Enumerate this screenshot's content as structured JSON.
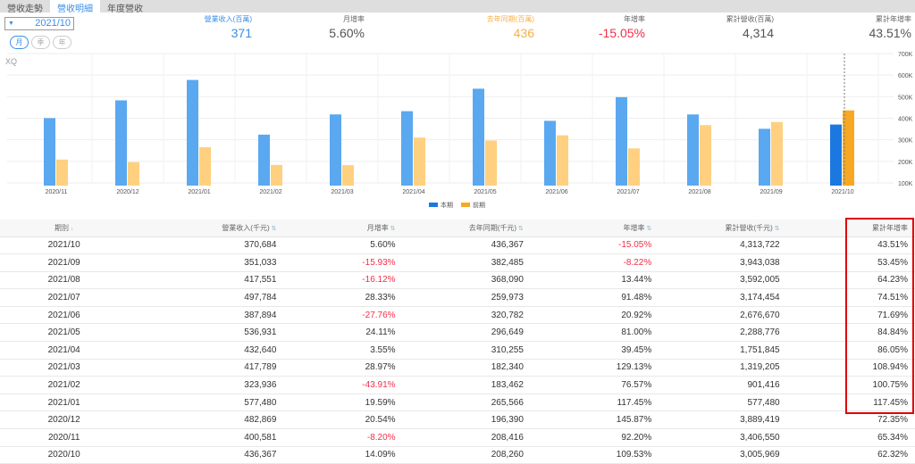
{
  "tabs": [
    "營收走勢",
    "營收明細",
    "年度營收"
  ],
  "date_select": "2021/10",
  "periods": [
    "月",
    "季",
    "年"
  ],
  "stats": [
    {
      "label": "營業收入(百萬)",
      "value": "371",
      "color": "#3a8ee6",
      "labelColor": "#3a8ee6"
    },
    {
      "label": "月增率",
      "value": "5.60%",
      "color": "#555",
      "labelColor": "#666"
    },
    {
      "label": "去年同期(百萬)",
      "value": "436",
      "color": "#f7b04a",
      "labelColor": "#f7b04a"
    },
    {
      "label": "年增率",
      "value": "-15.05%",
      "color": "#f0304a",
      "labelColor": "#666"
    },
    {
      "label": "累計營收(百萬)",
      "value": "4,314",
      "color": "#555",
      "labelColor": "#666"
    },
    {
      "label": "累計年增率",
      "value": "43.51%",
      "color": "#555",
      "labelColor": "#666"
    }
  ],
  "chart_data": {
    "type": "bar",
    "watermark": "XQ",
    "categories": [
      "2020/11",
      "2020/12",
      "2021/01",
      "2021/02",
      "2021/03",
      "2021/04",
      "2021/05",
      "2021/06",
      "2021/07",
      "2021/08",
      "2021/09",
      "2021/10"
    ],
    "series": [
      {
        "name": "本期",
        "color": "#5aa8f0",
        "highlight": "#1a78e0",
        "values": [
          400581,
          482869,
          577480,
          323936,
          417789,
          432640,
          536931,
          387894,
          497784,
          417551,
          351033,
          370684
        ]
      },
      {
        "name": "前期",
        "color": "#ffd080",
        "highlight": "#f7a820",
        "values": [
          208416,
          196390,
          265566,
          183462,
          182340,
          310255,
          296649,
          320782,
          259973,
          368090,
          382485,
          436367
        ]
      }
    ],
    "yticks": [
      "100K",
      "200K",
      "300K",
      "400K",
      "500K",
      "600K",
      "700K"
    ],
    "ylim": [
      100000,
      700000
    ],
    "legend": "bottom-center"
  },
  "table": {
    "headers": [
      "期別",
      "營業收入(千元)",
      "月增率",
      "去年同期(千元)",
      "年增率",
      "累計營收(千元)",
      "累計年增率"
    ],
    "rows": [
      [
        "2021/10",
        "370,684",
        "5.60%",
        "436,367",
        "-15.05%",
        "4,313,722",
        "43.51%"
      ],
      [
        "2021/09",
        "351,033",
        "-15.93%",
        "382,485",
        "-8.22%",
        "3,943,038",
        "53.45%"
      ],
      [
        "2021/08",
        "417,551",
        "-16.12%",
        "368,090",
        "13.44%",
        "3,592,005",
        "64.23%"
      ],
      [
        "2021/07",
        "497,784",
        "28.33%",
        "259,973",
        "91.48%",
        "3,174,454",
        "74.51%"
      ],
      [
        "2021/06",
        "387,894",
        "-27.76%",
        "320,782",
        "20.92%",
        "2,676,670",
        "71.69%"
      ],
      [
        "2021/05",
        "536,931",
        "24.11%",
        "296,649",
        "81.00%",
        "2,288,776",
        "84.84%"
      ],
      [
        "2021/04",
        "432,640",
        "3.55%",
        "310,255",
        "39.45%",
        "1,751,845",
        "86.05%"
      ],
      [
        "2021/03",
        "417,789",
        "28.97%",
        "182,340",
        "129.13%",
        "1,319,205",
        "108.94%"
      ],
      [
        "2021/02",
        "323,936",
        "-43.91%",
        "183,462",
        "76.57%",
        "901,416",
        "100.75%"
      ],
      [
        "2021/01",
        "577,480",
        "19.59%",
        "265,566",
        "117.45%",
        "577,480",
        "117.45%"
      ],
      [
        "2020/12",
        "482,869",
        "20.54%",
        "196,390",
        "145.87%",
        "3,889,419",
        "72.35%"
      ],
      [
        "2020/11",
        "400,581",
        "-8.20%",
        "208,416",
        "92.20%",
        "3,406,550",
        "65.34%"
      ],
      [
        "2020/10",
        "436,367",
        "14.09%",
        "208,260",
        "109.53%",
        "3,005,969",
        "62.32%"
      ]
    ]
  }
}
